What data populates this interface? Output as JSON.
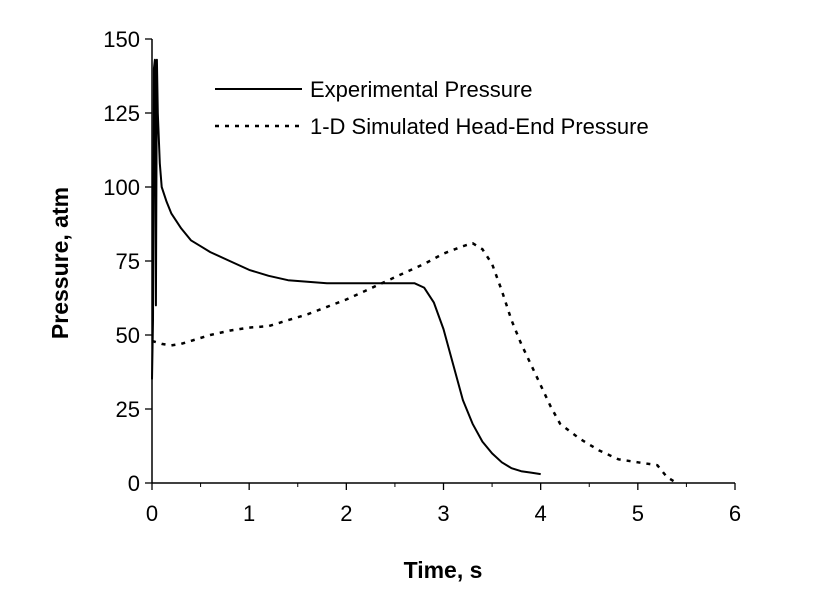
{
  "chart_data": {
    "type": "line",
    "title": "",
    "xlabel": "Time, s",
    "ylabel": "Pressure, atm",
    "xlim": [
      0,
      6
    ],
    "ylim": [
      0,
      150
    ],
    "xticks": [
      0,
      1,
      2,
      3,
      4,
      5,
      6
    ],
    "yticks": [
      0,
      25,
      50,
      75,
      100,
      125,
      150
    ],
    "grid": false,
    "legend_position": "top-right",
    "series": [
      {
        "name": "Experimental Pressure",
        "style": "solid",
        "color": "#000000",
        "x": [
          0.0,
          0.01,
          0.02,
          0.03,
          0.04,
          0.05,
          0.06,
          0.08,
          0.1,
          0.15,
          0.2,
          0.3,
          0.4,
          0.5,
          0.6,
          0.8,
          1.0,
          1.2,
          1.4,
          1.6,
          1.8,
          2.0,
          2.2,
          2.4,
          2.6,
          2.7,
          2.8,
          2.9,
          3.0,
          3.1,
          3.2,
          3.3,
          3.4,
          3.5,
          3.6,
          3.7,
          3.8,
          3.9,
          4.0
        ],
        "y": [
          35,
          55,
          140,
          143,
          60,
          143,
          125,
          108,
          100,
          95,
          91,
          86,
          82,
          80,
          78,
          75,
          72,
          70,
          68.5,
          68,
          67.5,
          67.5,
          67.5,
          67.5,
          67.5,
          67.5,
          66,
          61,
          52,
          40,
          28,
          20,
          14,
          10,
          7,
          5,
          4,
          3.5,
          3
        ]
      },
      {
        "name": "1-D Simulated Head-End Pressure",
        "style": "dotted",
        "color": "#000000",
        "x": [
          0.0,
          0.1,
          0.2,
          0.3,
          0.4,
          0.6,
          0.8,
          1.0,
          1.2,
          1.4,
          1.6,
          1.8,
          2.0,
          2.2,
          2.4,
          2.6,
          2.8,
          3.0,
          3.2,
          3.3,
          3.4,
          3.5,
          3.6,
          3.7,
          3.8,
          3.9,
          4.0,
          4.1,
          4.2,
          4.4,
          4.6,
          4.8,
          5.0,
          5.2,
          5.3,
          5.4
        ],
        "y": [
          48,
          47,
          46.5,
          47,
          48,
          50,
          51.5,
          52.5,
          53,
          55,
          57,
          59.5,
          62,
          65,
          68,
          71,
          74,
          77.5,
          80,
          81,
          79,
          74,
          65,
          55,
          47,
          40,
          33,
          26,
          20,
          15,
          11,
          8,
          7,
          6,
          2,
          0
        ]
      }
    ]
  }
}
